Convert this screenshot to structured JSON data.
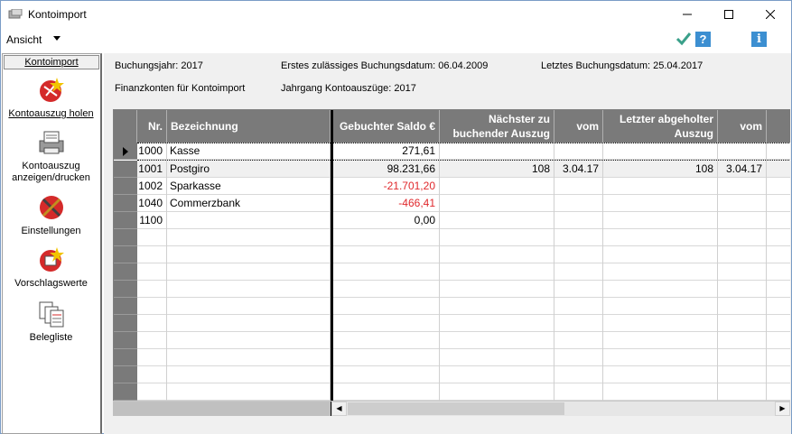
{
  "window": {
    "title": "Kontoimport",
    "controls": {
      "minimize": "—",
      "maximize": "☐",
      "close": "✕"
    }
  },
  "menu": {
    "ansicht": "Ansicht"
  },
  "toolbar": {
    "help": "?",
    "info": "i"
  },
  "sidebar": {
    "header": "Kontoimport",
    "items": [
      {
        "label": "Kontoauszug holen",
        "icon": "download-statement-icon"
      },
      {
        "label": "Kontoauszug anzeigen/drucken",
        "icon": "printer-icon"
      },
      {
        "label": "Einstellungen",
        "icon": "settings-icon"
      },
      {
        "label": "Vorschlagswerte",
        "icon": "defaults-icon"
      },
      {
        "label": "Belegliste",
        "icon": "document-list-icon"
      }
    ]
  },
  "info": {
    "buchungsjahr": "Buchungsjahr: 2017",
    "erstes_datum": "Erstes zulässiges Buchungsdatum: 06.04.2009",
    "letztes_datum": "Letztes Buchungsdatum: 25.04.2017",
    "finanzkonten": "Finanzkonten für Kontoimport",
    "jahrgang": "Jahrgang Kontoauszüge: 2017"
  },
  "table": {
    "headers": {
      "nr": "Nr.",
      "bezeichnung": "Bezeichnung",
      "saldo": "Gebuchter Saldo €",
      "naechster_1": "Nächster zu",
      "naechster_2": "buchender Auszug",
      "vom1": "vom",
      "letzter_1": "Letzter abgeholter",
      "letzter_2": "Auszug",
      "vom2": "vom"
    },
    "rows": [
      {
        "nr": "1000",
        "bez": "Kasse",
        "saldo": "271,61",
        "naechster": "",
        "vom1": "",
        "letzter": "",
        "vom2": ""
      },
      {
        "nr": "1001",
        "bez": "Postgiro",
        "saldo": "98.231,66",
        "naechster": "108",
        "vom1": "3.04.17",
        "letzter": "108",
        "vom2": "3.04.17"
      },
      {
        "nr": "1002",
        "bez": "Sparkasse",
        "saldo": "-21.701,20",
        "naechster": "",
        "vom1": "",
        "letzter": "",
        "vom2": ""
      },
      {
        "nr": "1040",
        "bez": "Commerzbank",
        "saldo": "-466,41",
        "naechster": "",
        "vom1": "",
        "letzter": "",
        "vom2": ""
      },
      {
        "nr": "1100",
        "bez": "",
        "saldo": "0,00",
        "naechster": "",
        "vom1": "",
        "letzter": "",
        "vom2": ""
      }
    ]
  },
  "colors": {
    "negative": "#e0282c",
    "header_bg": "#7a7a7a",
    "accent": "#3c8fd1"
  }
}
